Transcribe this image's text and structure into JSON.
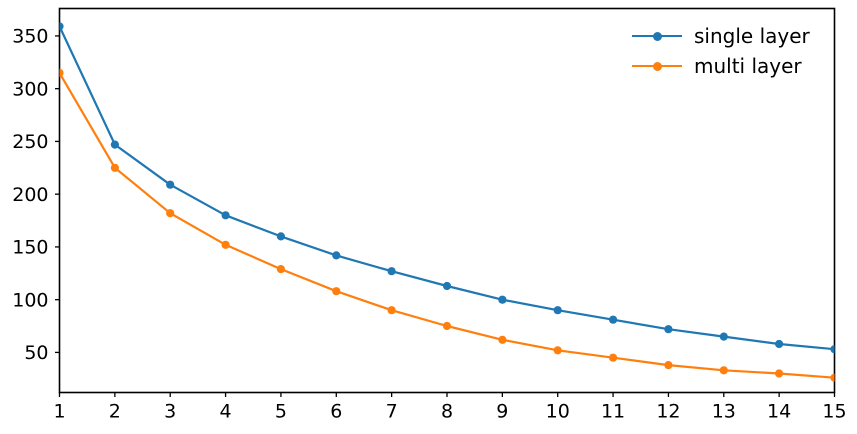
{
  "chart_data": {
    "type": "line",
    "title": "",
    "xlabel": "",
    "ylabel": "",
    "grid": false,
    "background": "#ffffff",
    "axis_color": "#000000",
    "x": [
      1,
      2,
      3,
      4,
      5,
      6,
      7,
      8,
      9,
      10,
      11,
      12,
      13,
      14,
      15
    ],
    "series": [
      {
        "name": "single layer",
        "color": "#1f77b4",
        "marker": "circle",
        "values": [
          359,
          247,
          209,
          180,
          160,
          142,
          127,
          113,
          100,
          90,
          81,
          72,
          65,
          58,
          53
        ]
      },
      {
        "name": "multi layer",
        "color": "#ff7f0e",
        "marker": "circle",
        "values": [
          315,
          225,
          182,
          152,
          129,
          108,
          90,
          75,
          62,
          52,
          45,
          38,
          33,
          30,
          26
        ]
      }
    ],
    "xlim": [
      1,
      15
    ],
    "ylim": [
      12,
      376
    ],
    "xticks": [
      1,
      2,
      3,
      4,
      5,
      6,
      7,
      8,
      9,
      10,
      11,
      12,
      13,
      14,
      15
    ],
    "yticks": [
      50,
      100,
      150,
      200,
      250,
      300,
      350
    ],
    "legend_position": "upper right",
    "legend_frame": false
  }
}
